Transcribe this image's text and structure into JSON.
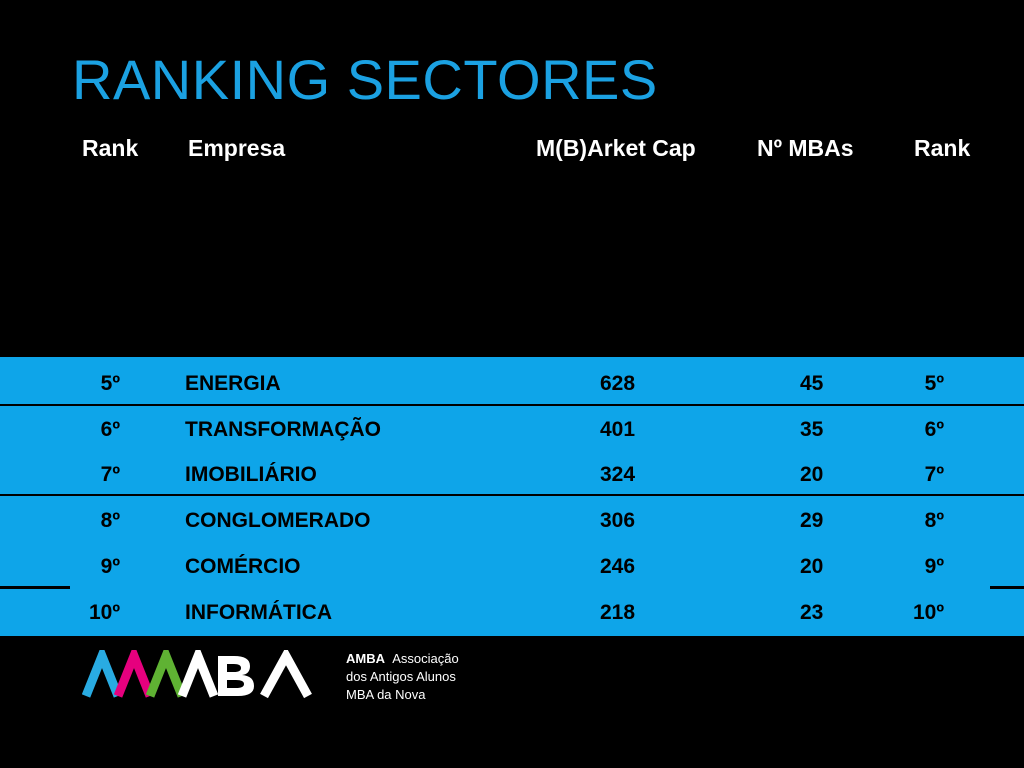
{
  "slide": {
    "title": "RANKING SECTORES"
  },
  "table": {
    "headers": {
      "rank_left": "Rank",
      "empresa": "Empresa",
      "market_cap": "M(B)Arket Cap",
      "mbas": "Nº MBAs",
      "rank_right": "Rank"
    },
    "rows": [
      {
        "rank_left": "5º",
        "empresa": "ENERGIA",
        "market_cap": "628",
        "mbas": "45",
        "rank_right": "5º"
      },
      {
        "rank_left": "6º",
        "empresa": "TRANSFORMAÇÃO",
        "market_cap": "401",
        "mbas": "35",
        "rank_right": "6º"
      },
      {
        "rank_left": "7º",
        "empresa": "IMOBILIÁRIO",
        "market_cap": "324",
        "mbas": "20",
        "rank_right": "7º"
      },
      {
        "rank_left": "8º",
        "empresa": "CONGLOMERADO",
        "market_cap": "306",
        "mbas": "29",
        "rank_right": "8º"
      },
      {
        "rank_left": "9º",
        "empresa": "COMÉRCIO",
        "market_cap": "246",
        "mbas": "20",
        "rank_right": "9º"
      },
      {
        "rank_left": "10º",
        "empresa": "INFORMÁTICA",
        "market_cap": "218",
        "mbas": "23",
        "rank_right": "10º"
      }
    ]
  },
  "footer": {
    "logo_text": "AMBA",
    "brand": "AMBA",
    "line1": "Associação",
    "line2": "dos Antigos Alunos",
    "line3": "MBA da Nova"
  },
  "colors": {
    "title": "#1ba1e2",
    "band": "#0ea5e9",
    "background": "#000000",
    "logo_cyan": "#29abe2",
    "logo_magenta": "#e6007e",
    "logo_green": "#5fb233",
    "logo_white": "#ffffff"
  }
}
